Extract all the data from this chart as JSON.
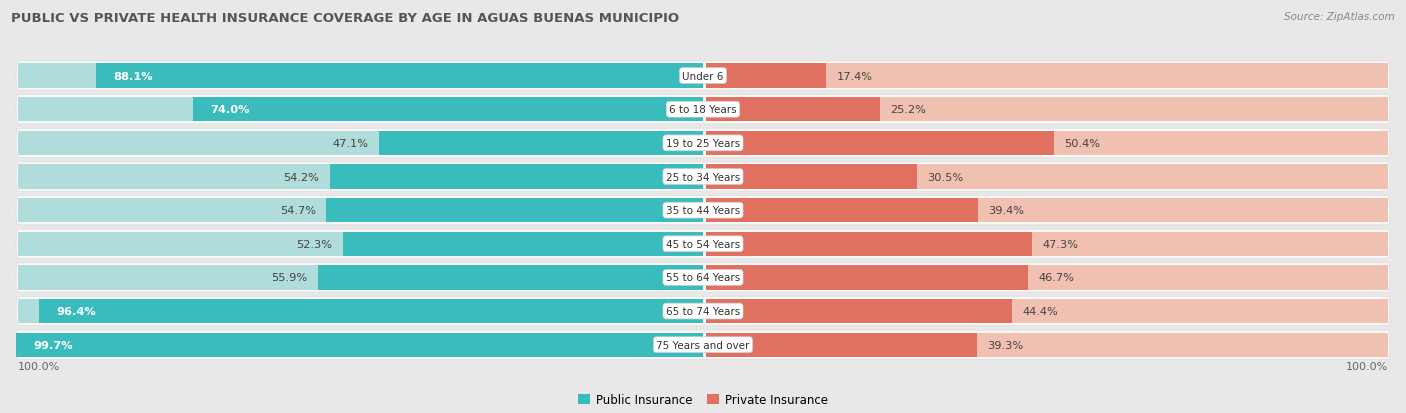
{
  "title": "PUBLIC VS PRIVATE HEALTH INSURANCE COVERAGE BY AGE IN AGUAS BUENAS MUNICIPIO",
  "source": "Source: ZipAtlas.com",
  "categories": [
    "Under 6",
    "6 to 18 Years",
    "19 to 25 Years",
    "25 to 34 Years",
    "35 to 44 Years",
    "45 to 54 Years",
    "55 to 64 Years",
    "65 to 74 Years",
    "75 Years and over"
  ],
  "public_values": [
    88.1,
    74.0,
    47.1,
    54.2,
    54.7,
    52.3,
    55.9,
    96.4,
    99.7
  ],
  "private_values": [
    17.4,
    25.2,
    50.4,
    30.5,
    39.4,
    47.3,
    46.7,
    44.4,
    39.3
  ],
  "public_color": "#3bbcbc",
  "private_color": "#e07060",
  "public_color_light": "#b0dcdc",
  "private_color_light": "#f0c0b0",
  "bg_color": "#e8e8e8",
  "row_bg_color": "#f8f8f8",
  "title_color": "#555555",
  "label_color": "#444444",
  "max_value": 100.0,
  "legend_public": "Public Insurance",
  "legend_private": "Private Insurance",
  "pub_threshold": 60,
  "priv_threshold": 100
}
